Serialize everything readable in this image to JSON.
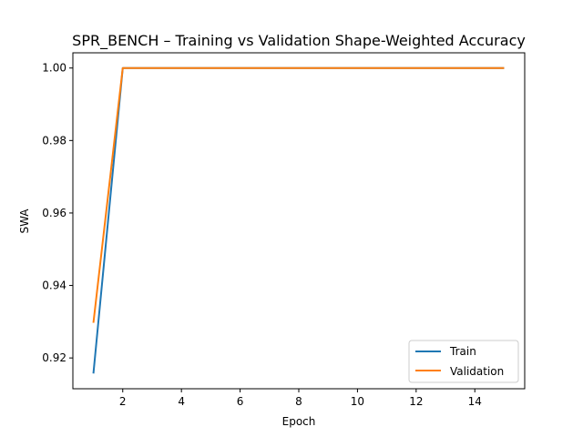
{
  "chart_data": {
    "type": "line",
    "title": "SPR_BENCH – Training vs Validation Shape-Weighted Accuracy",
    "xlabel": "Epoch",
    "ylabel": "SWA",
    "xlim": [
      0.3,
      15.7
    ],
    "ylim": [
      0.9115,
      1.0042
    ],
    "x_ticks": [
      2,
      4,
      6,
      8,
      10,
      12,
      14
    ],
    "y_ticks": [
      0.92,
      0.94,
      0.96,
      0.98,
      1.0
    ],
    "y_tick_labels": [
      "0.92",
      "0.94",
      "0.96",
      "0.98",
      "1.00"
    ],
    "grid": false,
    "legend_position": "lower-right",
    "x": [
      1,
      2,
      3,
      4,
      5,
      6,
      7,
      8,
      9,
      10,
      11,
      12,
      13,
      14,
      15
    ],
    "series": [
      {
        "name": "Train",
        "color": "#1f77b4",
        "values": [
          0.9157,
          1.0,
          1.0,
          1.0,
          1.0,
          1.0,
          1.0,
          1.0,
          1.0,
          1.0,
          1.0,
          1.0,
          1.0,
          1.0,
          1.0
        ]
      },
      {
        "name": "Validation",
        "color": "#ff7f0e",
        "values": [
          0.9297,
          1.0,
          1.0,
          1.0,
          1.0,
          1.0,
          1.0,
          1.0,
          1.0,
          1.0,
          1.0,
          1.0,
          1.0,
          1.0,
          1.0
        ]
      }
    ]
  }
}
